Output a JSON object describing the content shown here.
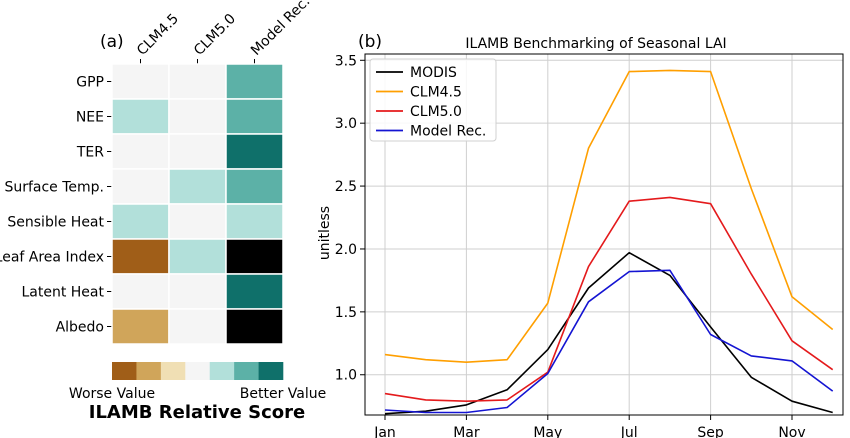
{
  "chart_data": [
    {
      "type": "heatmap",
      "panel_label": "(a)",
      "columns": [
        "CLM4.5",
        "CLM5.0",
        "Model Rec."
      ],
      "rows": [
        "GPP",
        "NEE",
        "TER",
        "Surface Temp.",
        "Sensible Heat",
        "Leaf Area Index",
        "Latent Heat",
        "Albedo"
      ],
      "levels": [
        [
          4,
          4,
          6
        ],
        [
          5,
          4,
          6
        ],
        [
          4,
          4,
          7
        ],
        [
          4,
          5,
          6
        ],
        [
          5,
          4,
          5
        ],
        [
          1,
          5,
          8
        ],
        [
          4,
          4,
          7
        ],
        [
          2,
          4,
          8
        ]
      ],
      "palette": [
        "#a05e18",
        "#d0a55a",
        "#f0dfb4",
        "#f5f5f5",
        "#b2e0da",
        "#5cb1a7",
        "#0f706a"
      ],
      "legend": {
        "low_label": "Worse Value",
        "high_label": "Better Value",
        "title": "ILAMB Relative Score"
      }
    },
    {
      "type": "line",
      "panel_label": "(b)",
      "title": "ILAMB Benchmarking of Seasonal LAI",
      "xlabel": "",
      "ylabel": "unitless",
      "x": [
        "Jan",
        "Feb",
        "Mar",
        "Apr",
        "May",
        "Jun",
        "Jul",
        "Aug",
        "Sep",
        "Oct",
        "Nov",
        "Dec"
      ],
      "x_tick_labels": [
        "Jan",
        "Mar",
        "May",
        "Jul",
        "Sep",
        "Nov"
      ],
      "ylim": [
        0.68,
        3.55
      ],
      "y_ticks": [
        "1.0",
        "1.5",
        "2.0",
        "2.5",
        "3.0",
        "3.5"
      ],
      "grid": true,
      "legend_position": "top-left",
      "series": [
        {
          "name": "MODIS",
          "color": "#000000",
          "values": [
            0.69,
            0.71,
            0.76,
            0.88,
            1.2,
            1.69,
            1.97,
            1.79,
            1.38,
            0.98,
            0.79,
            0.7
          ]
        },
        {
          "name": "CLM4.5",
          "color": "#ff9f00",
          "values": [
            1.16,
            1.12,
            1.1,
            1.12,
            1.57,
            2.8,
            3.41,
            3.42,
            3.41,
            2.48,
            1.62,
            1.36
          ]
        },
        {
          "name": "CLM5.0",
          "color": "#e41a1c",
          "values": [
            0.85,
            0.8,
            0.79,
            0.8,
            1.02,
            1.86,
            2.38,
            2.41,
            2.36,
            1.8,
            1.27,
            1.04
          ]
        },
        {
          "name": "Model Rec.",
          "color": "#1414d2",
          "values": [
            0.72,
            0.7,
            0.7,
            0.74,
            1.01,
            1.58,
            1.82,
            1.83,
            1.32,
            1.15,
            1.11,
            0.87
          ]
        }
      ]
    }
  ]
}
